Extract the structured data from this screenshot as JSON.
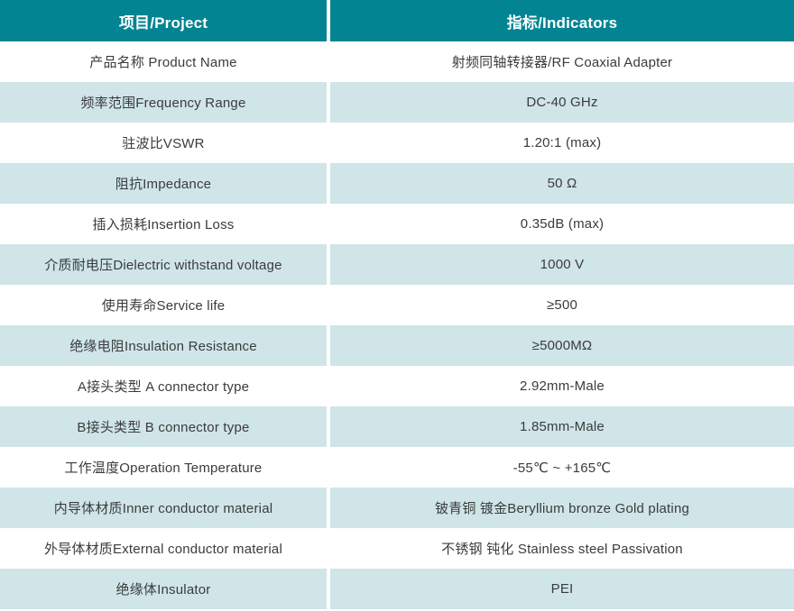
{
  "colors": {
    "header_bg": "#038492",
    "alt_row_bg": "#CFE5E8",
    "plain_row_bg": "#FFFFFF",
    "header_text": "#FFFFFF",
    "body_text": "#3B3B3B"
  },
  "table": {
    "header": {
      "project": "项目/Project",
      "indicators": "指标/Indicators"
    },
    "rows": [
      {
        "project": "产品名称 Product Name",
        "indicator": "射频同轴转接器/RF Coaxial Adapter"
      },
      {
        "project": "频率范围Frequency Range",
        "indicator": "DC-40 GHz"
      },
      {
        "project": "驻波比VSWR",
        "indicator": "1.20:1 (max)"
      },
      {
        "project": "阻抗Impedance",
        "indicator": "50 Ω"
      },
      {
        "project": "插入损耗Insertion Loss",
        "indicator": "0.35dB (max)"
      },
      {
        "project": "介质耐电压Dielectric withstand voltage",
        "indicator": "1000 V"
      },
      {
        "project": "使用寿命Service life",
        "indicator": "≥500"
      },
      {
        "project": "绝缘电阻Insulation Resistance",
        "indicator": "≥5000MΩ"
      },
      {
        "project": "A接头类型 A connector type",
        "indicator": "2.92mm-Male"
      },
      {
        "project": "B接头类型 B connector type",
        "indicator": "1.85mm-Male"
      },
      {
        "project": "工作温度Operation Temperature",
        "indicator": "-55℃ ~ +165℃"
      },
      {
        "project": "内导体材质Inner conductor material",
        "indicator": "铍青铜 镀金Beryllium bronze Gold plating"
      },
      {
        "project": "外导体材质External conductor material",
        "indicator": "不锈钢 钝化 Stainless steel Passivation"
      },
      {
        "project": "绝缘体Insulator",
        "indicator": "PEI"
      }
    ]
  }
}
